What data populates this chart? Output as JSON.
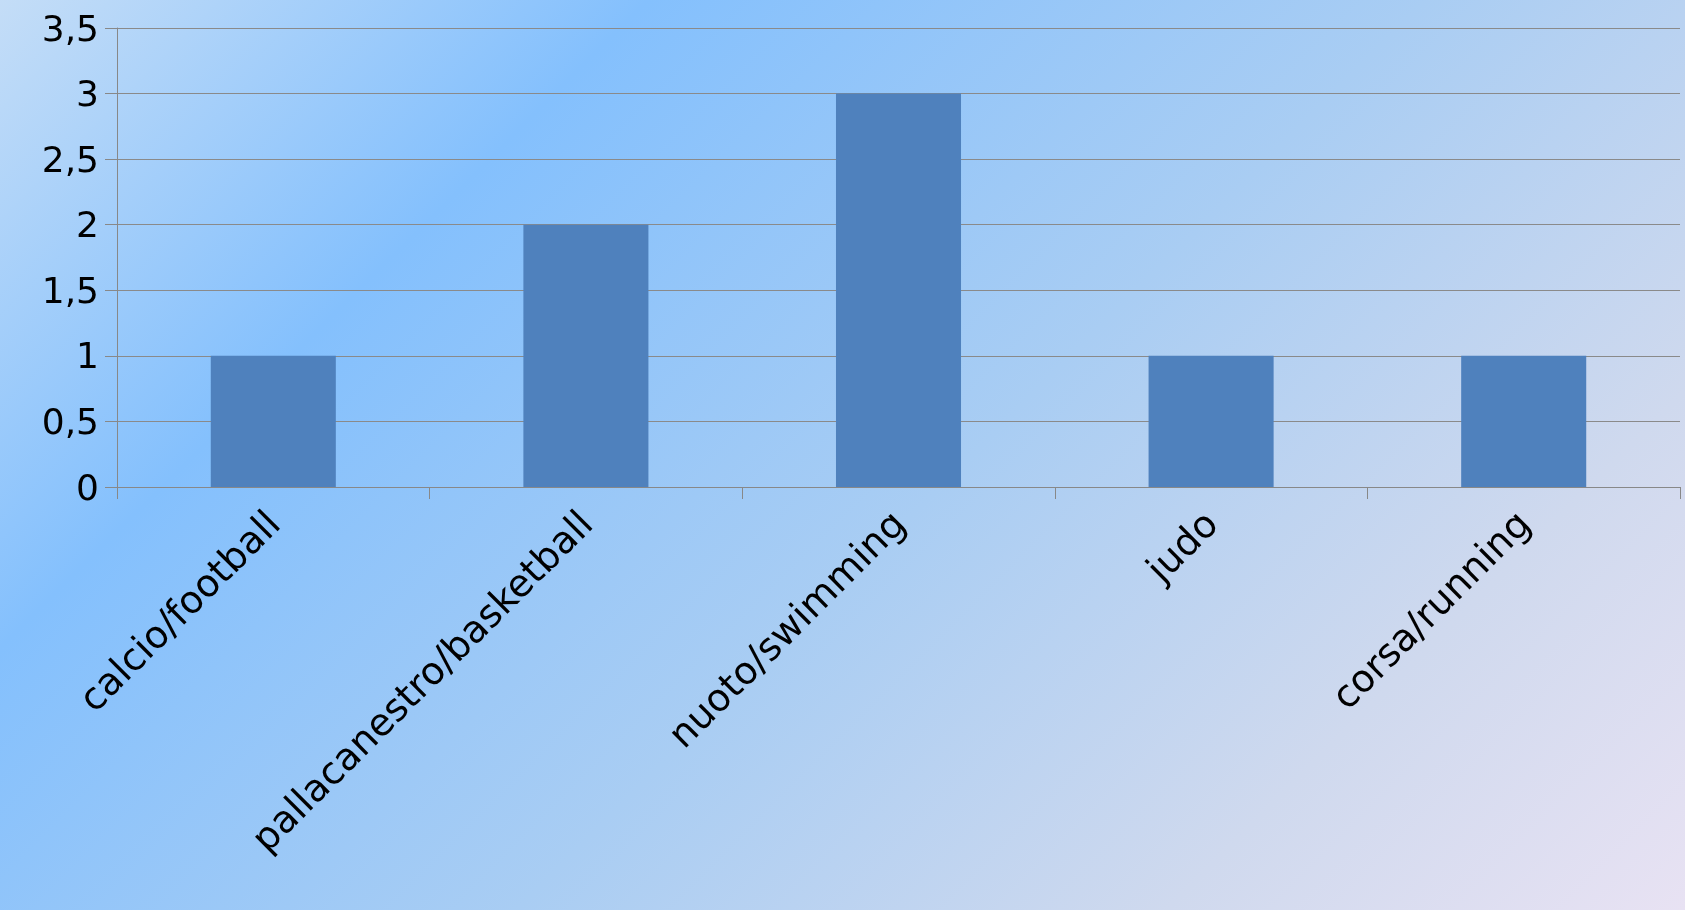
{
  "chart_data": {
    "type": "bar",
    "categories": [
      "calcio/football",
      "pallacanestro/basketball",
      "nuoto/swimming",
      "judo",
      "corsa/running"
    ],
    "values": [
      1,
      2,
      3,
      1,
      1
    ],
    "color": "#4f81bd",
    "ylim": [
      0,
      3.5
    ],
    "yticks": [
      0,
      {
        "value": 0.5,
        "label": "0,5"
      },
      1,
      {
        "value": 1.5,
        "label": "1,5"
      },
      2,
      {
        "value": 2.5,
        "label": "2,5"
      },
      3,
      {
        "value": 3.5,
        "label": "3,5"
      }
    ],
    "grid": "y"
  }
}
